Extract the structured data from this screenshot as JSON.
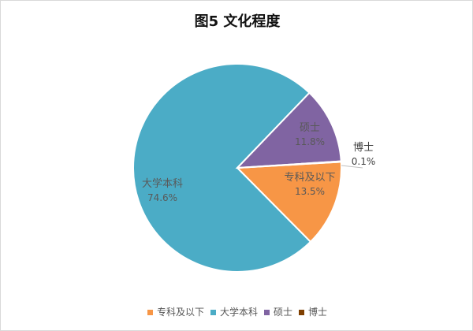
{
  "chart_data": {
    "type": "pie",
    "title": "图5 文化程度",
    "categories": [
      "专科及以下",
      "大学本科",
      "硕士",
      "博士"
    ],
    "values": [
      13.5,
      74.6,
      11.8,
      0.1
    ],
    "labels": [
      "13.5%",
      "74.6%",
      "11.8%",
      "0.1%"
    ],
    "colors": [
      "#F79646",
      "#4BACC6",
      "#8064A2",
      "#7F3F00"
    ],
    "legend": "bottom"
  }
}
